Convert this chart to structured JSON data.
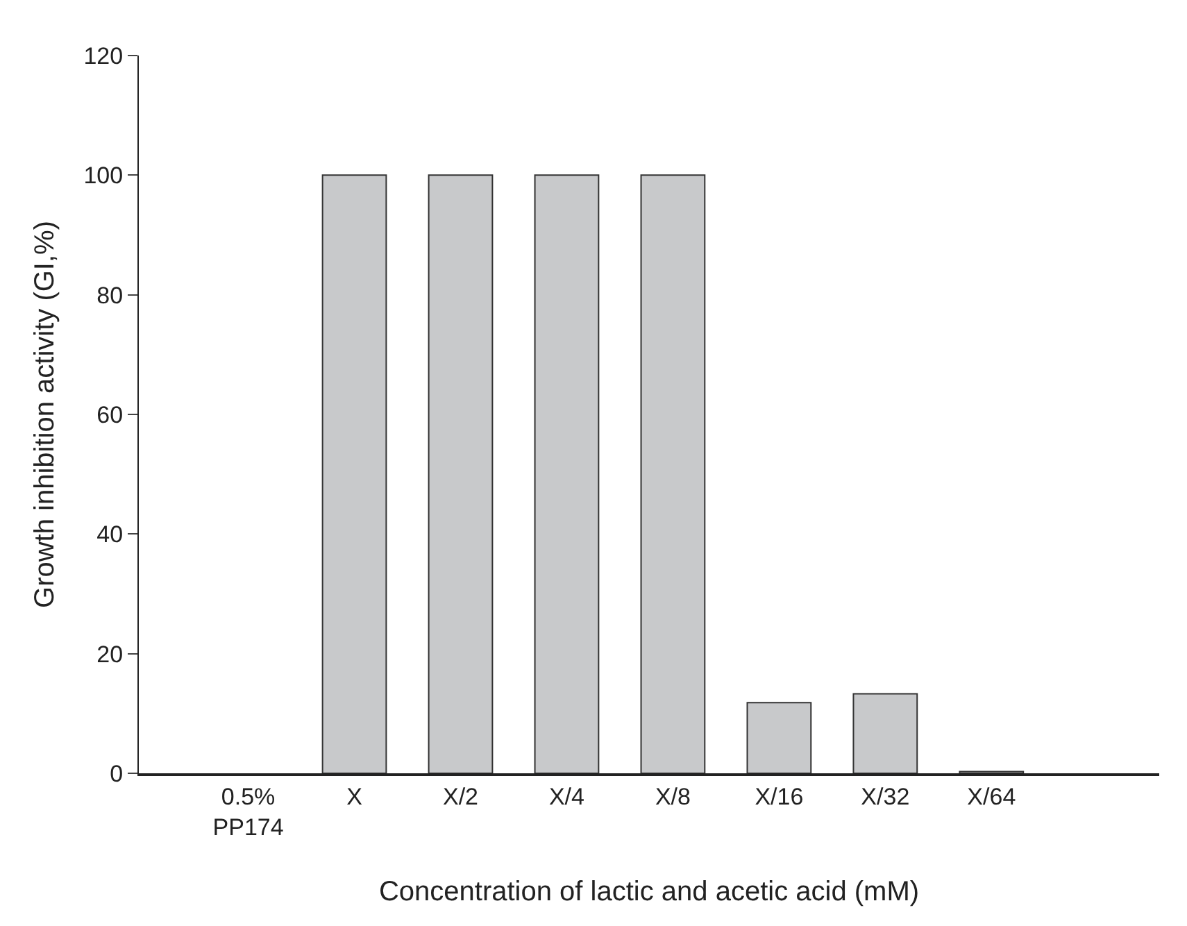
{
  "chart_data": {
    "type": "bar",
    "xlabel": "Concentration of lactic and acetic acid (mM)",
    "ylabel": "Growth inhibition activity (GI,%)",
    "categories": [
      "0.5%\nPP174",
      "X",
      "X/2",
      "X/4",
      "X/8",
      "X/16",
      "X/32",
      "X/64"
    ],
    "values": [
      null,
      100,
      100,
      100,
      100,
      11.8,
      13.3,
      0.3
    ],
    "color": "#c8c9cb",
    "ylim": [
      0,
      120
    ],
    "yticks": [
      0,
      20,
      40,
      60,
      80,
      100,
      120
    ]
  }
}
